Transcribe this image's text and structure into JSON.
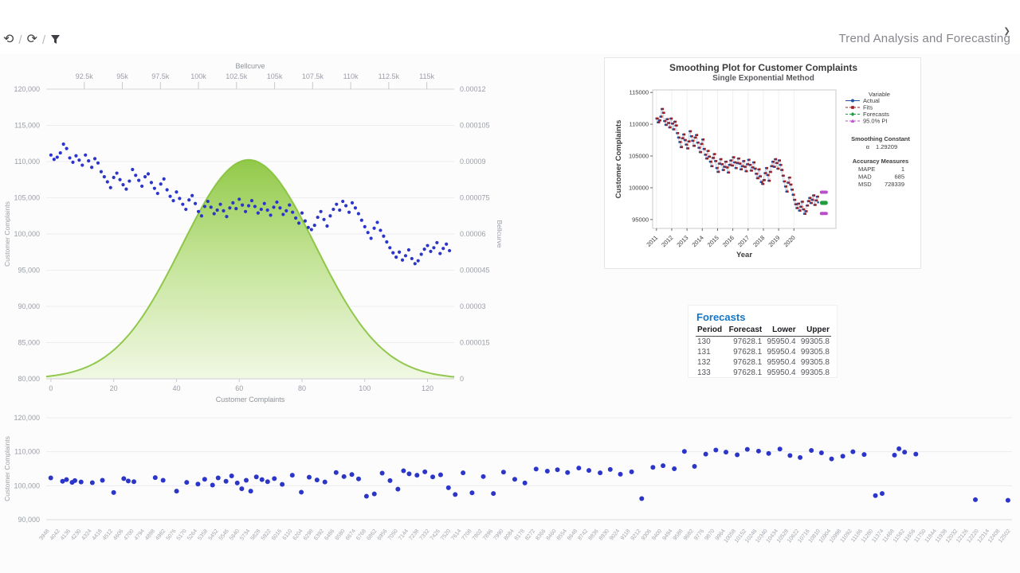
{
  "page_title": "Trend Analysis and Forecasting",
  "toolbar": {
    "icons": [
      {
        "name": "history-icon",
        "glyph": "⟲"
      },
      {
        "name": "refresh-icon",
        "glyph": "⟳"
      },
      {
        "name": "filter-icon"
      }
    ],
    "separator": "/",
    "expand_glyph": "❯"
  },
  "forecasts_table": {
    "title": "Forecasts",
    "columns": [
      "Period",
      "Forecast",
      "Lower",
      "Upper"
    ],
    "rows": [
      [
        "130",
        "97628.1",
        "95950.4",
        "99305.8"
      ],
      [
        "131",
        "97628.1",
        "95950.4",
        "99305.8"
      ],
      [
        "132",
        "97628.1",
        "95950.4",
        "99305.8"
      ],
      [
        "133",
        "97628.1",
        "95950.4",
        "99305.8"
      ]
    ]
  },
  "chart_data": [
    {
      "id": "bellcurve-scatter",
      "type": "scatter",
      "title_top_axis": "Bellcurve",
      "xlabel_bottom": "Customer Complaints",
      "ylabel_left": "Customer Complaints",
      "ylabel_right": "Bellcurve",
      "left_axis": {
        "min": 80000,
        "max": 120000,
        "ticks": [
          80000,
          85000,
          90000,
          95000,
          100000,
          105000,
          110000,
          115000,
          120000
        ],
        "labels": [
          "80,000",
          "85,000",
          "90,000",
          "95,000",
          "100,000",
          "105,000",
          "110,000",
          "115,000",
          "120,000"
        ]
      },
      "right_axis": {
        "min": 0,
        "max": 0.00012,
        "ticks": [
          0,
          1.5e-05,
          3e-05,
          4.5e-05,
          6e-05,
          7.5e-05,
          9e-05,
          0.000105,
          0.00012
        ],
        "labels": [
          "0",
          "0.000015",
          "0.00003",
          "0.000045",
          "0.00006",
          "0.000075",
          "0.00009",
          "0.000105",
          "0.00012"
        ]
      },
      "top_axis": {
        "domain": [
          90000,
          116800
        ],
        "ticks": [
          92500,
          95000,
          97500,
          100000,
          102500,
          105000,
          107500,
          110000,
          112500,
          115000
        ],
        "labels": [
          "92.5k",
          "95k",
          "97.5k",
          "100k",
          "102.5k",
          "105k",
          "107.5k",
          "110k",
          "112.5k",
          "115k"
        ]
      },
      "bottom_axis": {
        "domain": [
          -1.5,
          128.5
        ],
        "ticks": [
          0,
          20,
          40,
          60,
          80,
          100,
          120
        ]
      },
      "bell": {
        "mean": 103300,
        "sd": 4400,
        "peak": 9.07e-05,
        "stroke": "#86c23c",
        "fill_top": "#8cc63f",
        "fill_mid": "#bde18b",
        "fill_bottom": "#eef7df"
      },
      "scatter": {
        "color": "#2b36c9",
        "values": [
          110900,
          110300,
          110600,
          111200,
          112400,
          111800,
          110500,
          109900,
          110800,
          110200,
          109500,
          110900,
          110100,
          109200,
          110400,
          109800,
          108600,
          107900,
          107200,
          106400,
          107800,
          108400,
          107500,
          106800,
          106200,
          107300,
          108900,
          108100,
          107400,
          106600,
          107900,
          108300,
          107100,
          106300,
          105600,
          106900,
          107600,
          106100,
          105200,
          104600,
          105800,
          104900,
          104100,
          103400,
          104700,
          105300,
          104200,
          103100,
          102500,
          103800,
          104500,
          103700,
          102800,
          103300,
          104100,
          103200,
          102400,
          103600,
          104300,
          103500,
          104800,
          104000,
          103100,
          103900,
          104600,
          103800,
          102900,
          103400,
          104200,
          103300,
          102600,
          103700,
          104400,
          103600,
          102700,
          103200,
          104000,
          103000,
          102200,
          101500,
          102900,
          101800,
          100900,
          100600,
          101200,
          102300,
          103100,
          102000,
          101100,
          102500,
          103400,
          104100,
          103300,
          104500,
          103900,
          103000,
          104300,
          103600,
          102800,
          101900,
          101000,
          100200,
          99400,
          100800,
          101600,
          100500,
          99700,
          98900,
          98100,
          97400,
          96800,
          97500,
          96400,
          97000,
          97800,
          96600,
          95900,
          96300,
          97200,
          97900,
          98400,
          97600,
          98100,
          98800,
          97300,
          98000,
          98600,
          97700
        ]
      }
    },
    {
      "id": "smoothing-plot",
      "type": "line",
      "title": "Smoothing Plot for Customer Complaints",
      "subtitle": "Single Exponential Method",
      "xlabel": "Year",
      "ylabel": "Customer Complaints",
      "y_ticks": [
        95000,
        100000,
        105000,
        110000,
        115000
      ],
      "x_tick_labels": [
        "2011",
        "2012",
        "2013",
        "2014",
        "2015",
        "2016",
        "2017",
        "2018",
        "2019",
        "2020"
      ],
      "uses_series_of": "bellcurve-scatter",
      "forecast_periods": [
        130,
        131,
        132,
        133
      ],
      "forecast_value": 97628.1,
      "pi_upper": 99305.8,
      "pi_lower": 95950.4,
      "legend": {
        "title": "Variable",
        "items": [
          {
            "label": "Actual",
            "color": "#2155a3",
            "marker": "circle",
            "dash": "none"
          },
          {
            "label": "Fits",
            "color": "#9f1d20",
            "marker": "square",
            "dash": "3,2"
          },
          {
            "label": "Forecasts",
            "color": "#1f9e40",
            "marker": "diamond",
            "dash": "3,2"
          },
          {
            "label": "95.0% PI",
            "color": "#bb4ccc",
            "marker": "triangle",
            "dash": "3,2"
          }
        ]
      },
      "smoothing": {
        "header": "Smoothing Constant",
        "alpha_symbol": "α",
        "alpha_value": "1.29209"
      },
      "accuracy": {
        "header": "Accuracy Measures",
        "rows": [
          [
            "MAPE",
            "1"
          ],
          [
            "MAD",
            "685"
          ],
          [
            "MSD",
            "728339"
          ]
        ]
      }
    },
    {
      "id": "bottom-scatter",
      "type": "scatter",
      "ylabel": "Customer Complaints",
      "y_axis": {
        "ticks": [
          90000,
          100000,
          110000,
          120000
        ],
        "labels": [
          "90,000",
          "100,000",
          "110,000",
          "120,000"
        ],
        "map_min": 90000,
        "map_max": 120000
      },
      "x_axis": {
        "domain": [
          3948,
          12502
        ],
        "labels": [
          "3948",
          "4042",
          "4136",
          "4230",
          "4324",
          "4418",
          "4512",
          "4606",
          "4700",
          "4794",
          "4888",
          "4982",
          "5076",
          "5170",
          "5264",
          "5358",
          "5452",
          "5546",
          "5640",
          "5734",
          "5828",
          "5922",
          "6016",
          "6110",
          "6204",
          "6298",
          "6392",
          "6486",
          "6580",
          "6674",
          "6768",
          "6862",
          "6956",
          "7050",
          "7144",
          "7238",
          "7332",
          "7426",
          "7520",
          "7614",
          "7708",
          "7802",
          "7896",
          "7990",
          "8084",
          "8178",
          "8272",
          "8366",
          "8460",
          "8554",
          "8648",
          "8742",
          "8836",
          "8930",
          "9024",
          "9118",
          "9212",
          "9306",
          "9400",
          "9494",
          "9588",
          "9682",
          "9776",
          "9870",
          "9964",
          "10058",
          "10152",
          "10246",
          "10340",
          "10434",
          "10528",
          "10622",
          "10716",
          "10810",
          "10904",
          "10998",
          "11092",
          "11186",
          "11280",
          "11374",
          "11468",
          "11562",
          "11656",
          "11750",
          "11844",
          "11938",
          "12032",
          "12126",
          "12220",
          "12314",
          "12408",
          "12502"
        ]
      },
      "point_color": "#2b36c9",
      "points": [
        [
          3960,
          102300
        ],
        [
          4065,
          101300
        ],
        [
          4100,
          101800
        ],
        [
          4150,
          101000
        ],
        [
          4175,
          101500
        ],
        [
          4230,
          101100
        ],
        [
          4330,
          100900
        ],
        [
          4420,
          101600
        ],
        [
          4520,
          98000
        ],
        [
          4610,
          102100
        ],
        [
          4650,
          101400
        ],
        [
          4700,
          101200
        ],
        [
          4890,
          102400
        ],
        [
          4960,
          101600
        ],
        [
          5080,
          98400
        ],
        [
          5170,
          101000
        ],
        [
          5270,
          100500
        ],
        [
          5330,
          101900
        ],
        [
          5400,
          100200
        ],
        [
          5450,
          102300
        ],
        [
          5520,
          101300
        ],
        [
          5570,
          102900
        ],
        [
          5620,
          100800
        ],
        [
          5660,
          99100
        ],
        [
          5700,
          101600
        ],
        [
          5740,
          98400
        ],
        [
          5790,
          102600
        ],
        [
          5840,
          101800
        ],
        [
          5890,
          101200
        ],
        [
          5950,
          102100
        ],
        [
          6020,
          100400
        ],
        [
          6110,
          103100
        ],
        [
          6190,
          98100
        ],
        [
          6260,
          102500
        ],
        [
          6330,
          101700
        ],
        [
          6400,
          101100
        ],
        [
          6500,
          103900
        ],
        [
          6570,
          102700
        ],
        [
          6640,
          103300
        ],
        [
          6700,
          102000
        ],
        [
          6770,
          96900
        ],
        [
          6840,
          97600
        ],
        [
          6910,
          103700
        ],
        [
          6980,
          101500
        ],
        [
          7050,
          99000
        ],
        [
          7100,
          104400
        ],
        [
          7150,
          103500
        ],
        [
          7220,
          103100
        ],
        [
          7290,
          104100
        ],
        [
          7360,
          102600
        ],
        [
          7430,
          103200
        ],
        [
          7500,
          99400
        ],
        [
          7560,
          97400
        ],
        [
          7630,
          103800
        ],
        [
          7710,
          97900
        ],
        [
          7810,
          102700
        ],
        [
          7900,
          97700
        ],
        [
          7990,
          104000
        ],
        [
          8090,
          101900
        ],
        [
          8180,
          100800
        ],
        [
          8280,
          104900
        ],
        [
          8380,
          104300
        ],
        [
          8470,
          104700
        ],
        [
          8560,
          103900
        ],
        [
          8660,
          105200
        ],
        [
          8750,
          104500
        ],
        [
          8850,
          103800
        ],
        [
          8940,
          104800
        ],
        [
          9030,
          103400
        ],
        [
          9130,
          104100
        ],
        [
          9220,
          96200
        ],
        [
          9320,
          105400
        ],
        [
          9410,
          105900
        ],
        [
          9510,
          105000
        ],
        [
          9600,
          110100
        ],
        [
          9690,
          105700
        ],
        [
          9790,
          109300
        ],
        [
          9880,
          110500
        ],
        [
          9970,
          109900
        ],
        [
          10070,
          109100
        ],
        [
          10160,
          110700
        ],
        [
          10260,
          110200
        ],
        [
          10350,
          109500
        ],
        [
          10450,
          110800
        ],
        [
          10540,
          108900
        ],
        [
          10630,
          108300
        ],
        [
          10730,
          110400
        ],
        [
          10820,
          109700
        ],
        [
          10910,
          107900
        ],
        [
          11010,
          108700
        ],
        [
          11100,
          110000
        ],
        [
          11200,
          109200
        ],
        [
          11300,
          97100
        ],
        [
          11360,
          97700
        ],
        [
          11470,
          109000
        ],
        [
          11510,
          110900
        ],
        [
          11560,
          109900
        ],
        [
          11660,
          109300
        ],
        [
          12190,
          95900
        ],
        [
          12480,
          95700
        ]
      ]
    }
  ]
}
